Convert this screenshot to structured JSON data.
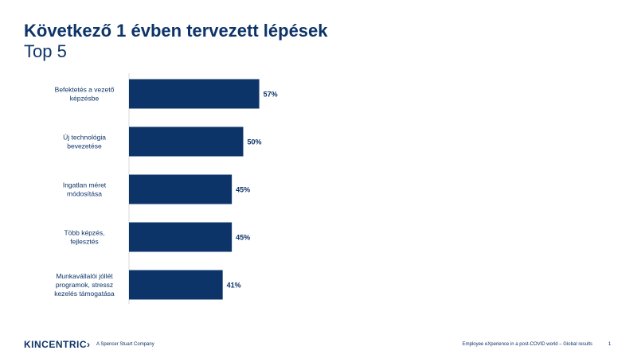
{
  "header": {
    "title": "Következő 1 évben tervezett lépések",
    "subtitle": "Top 5"
  },
  "colors": {
    "bar": "#0d3468",
    "text": "#0d3468",
    "axis": "#d9d9d9"
  },
  "chart_data": {
    "type": "bar",
    "orientation": "horizontal",
    "categories": [
      [
        "Befektetés a vezető",
        "képzésbe"
      ],
      [
        "Új technológia",
        "bevezetése"
      ],
      [
        "Ingatlan méret",
        "módosítása"
      ],
      [
        "Több képzés,",
        "fejlesztés"
      ],
      [
        "Munkavállalói jóllét",
        "programok, stressz",
        "kezelés támogatása"
      ]
    ],
    "values": [
      57,
      50,
      45,
      45,
      41
    ],
    "data_labels": [
      "57%",
      "50%",
      "45%",
      "45%",
      "41%"
    ],
    "unit": "%",
    "xlim": [
      0,
      100
    ],
    "grid": false,
    "legend": "none"
  },
  "footer": {
    "logo": "KINCENTRIC",
    "logo_mark": "›",
    "company": "A Spencer Stuart Company",
    "text": "Employee eXperience in a post-COVID  world – Global results",
    "page": "1"
  }
}
